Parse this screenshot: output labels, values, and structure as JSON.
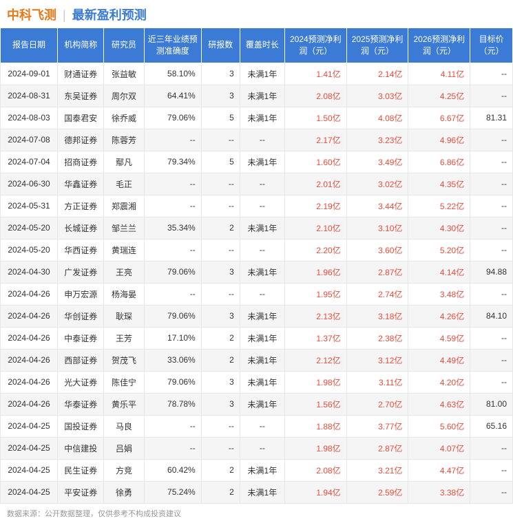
{
  "header": {
    "company": "中科飞测",
    "subtitle": "最新盈利预测"
  },
  "columns": [
    "报告日期",
    "机构简称",
    "研究员",
    "近三年业绩预测准确度",
    "研报数",
    "覆盖时长",
    "2024预测净利润（元）",
    "2025预测净利润（元）",
    "2026预测净利润（元）",
    "目标价（元）"
  ],
  "rows": [
    {
      "date": "2024-09-01",
      "org": "财通证券",
      "res": "张益敏",
      "acc": "58.10%",
      "cnt": "3",
      "cov": "未满1年",
      "p24": "1.41亿",
      "p25": "2.14亿",
      "p26": "4.11亿",
      "tgt": "--"
    },
    {
      "date": "2024-08-31",
      "org": "东吴证券",
      "res": "周尔双",
      "acc": "64.41%",
      "cnt": "3",
      "cov": "未满1年",
      "p24": "2.08亿",
      "p25": "3.03亿",
      "p26": "4.25亿",
      "tgt": "--"
    },
    {
      "date": "2024-08-03",
      "org": "国泰君安",
      "res": "徐乔威",
      "acc": "79.06%",
      "cnt": "5",
      "cov": "未满1年",
      "p24": "1.50亿",
      "p25": "4.08亿",
      "p26": "6.67亿",
      "tgt": "81.31"
    },
    {
      "date": "2024-07-08",
      "org": "德邦证券",
      "res": "陈蓉芳",
      "acc": "--",
      "cnt": "--",
      "cov": "--",
      "p24": "2.17亿",
      "p25": "3.23亿",
      "p26": "4.96亿",
      "tgt": "--"
    },
    {
      "date": "2024-07-04",
      "org": "招商证券",
      "res": "鄢凡",
      "acc": "79.34%",
      "cnt": "5",
      "cov": "未满1年",
      "p24": "1.60亿",
      "p25": "3.49亿",
      "p26": "6.86亿",
      "tgt": "--"
    },
    {
      "date": "2024-06-30",
      "org": "华鑫证券",
      "res": "毛正",
      "acc": "--",
      "cnt": "--",
      "cov": "--",
      "p24": "2.01亿",
      "p25": "3.02亿",
      "p26": "4.35亿",
      "tgt": "--"
    },
    {
      "date": "2024-05-31",
      "org": "方正证券",
      "res": "郑震湘",
      "acc": "--",
      "cnt": "--",
      "cov": "--",
      "p24": "2.19亿",
      "p25": "3.44亿",
      "p26": "5.22亿",
      "tgt": "--"
    },
    {
      "date": "2024-05-20",
      "org": "长城证券",
      "res": "邹兰兰",
      "acc": "35.34%",
      "cnt": "2",
      "cov": "未满1年",
      "p24": "2.10亿",
      "p25": "3.10亿",
      "p26": "4.30亿",
      "tgt": "--"
    },
    {
      "date": "2024-05-20",
      "org": "华西证券",
      "res": "黄瑞连",
      "acc": "--",
      "cnt": "--",
      "cov": "--",
      "p24": "2.20亿",
      "p25": "3.60亿",
      "p26": "5.20亿",
      "tgt": "--"
    },
    {
      "date": "2024-04-30",
      "org": "广发证券",
      "res": "王亮",
      "acc": "79.06%",
      "cnt": "3",
      "cov": "未满1年",
      "p24": "1.96亿",
      "p25": "2.87亿",
      "p26": "4.14亿",
      "tgt": "94.88"
    },
    {
      "date": "2024-04-26",
      "org": "申万宏源",
      "res": "杨海晏",
      "acc": "--",
      "cnt": "--",
      "cov": "--",
      "p24": "1.95亿",
      "p25": "2.74亿",
      "p26": "3.48亿",
      "tgt": "--"
    },
    {
      "date": "2024-04-26",
      "org": "华创证券",
      "res": "耿琛",
      "acc": "79.06%",
      "cnt": "3",
      "cov": "未满1年",
      "p24": "2.13亿",
      "p25": "3.18亿",
      "p26": "4.26亿",
      "tgt": "84.10"
    },
    {
      "date": "2024-04-26",
      "org": "中泰证券",
      "res": "王芳",
      "acc": "17.10%",
      "cnt": "2",
      "cov": "未满1年",
      "p24": "1.37亿",
      "p25": "2.38亿",
      "p26": "4.59亿",
      "tgt": "--"
    },
    {
      "date": "2024-04-26",
      "org": "西部证券",
      "res": "贺茂飞",
      "acc": "33.06%",
      "cnt": "2",
      "cov": "未满1年",
      "p24": "2.12亿",
      "p25": "3.12亿",
      "p26": "4.49亿",
      "tgt": "--"
    },
    {
      "date": "2024-04-26",
      "org": "光大证券",
      "res": "陈佳宁",
      "acc": "79.06%",
      "cnt": "3",
      "cov": "未满1年",
      "p24": "1.98亿",
      "p25": "3.11亿",
      "p26": "4.20亿",
      "tgt": "--"
    },
    {
      "date": "2024-04-26",
      "org": "华泰证券",
      "res": "黄乐平",
      "acc": "78.78%",
      "cnt": "3",
      "cov": "未满1年",
      "p24": "1.56亿",
      "p25": "2.70亿",
      "p26": "4.63亿",
      "tgt": "81.00"
    },
    {
      "date": "2024-04-25",
      "org": "国投证券",
      "res": "马良",
      "acc": "--",
      "cnt": "--",
      "cov": "--",
      "p24": "1.88亿",
      "p25": "3.77亿",
      "p26": "5.60亿",
      "tgt": "65.16"
    },
    {
      "date": "2024-04-25",
      "org": "中信建投",
      "res": "吕娟",
      "acc": "--",
      "cnt": "--",
      "cov": "--",
      "p24": "1.98亿",
      "p25": "2.87亿",
      "p26": "4.07亿",
      "tgt": "--"
    },
    {
      "date": "2024-04-25",
      "org": "民生证券",
      "res": "方竞",
      "acc": "60.42%",
      "cnt": "2",
      "cov": "未满1年",
      "p24": "2.08亿",
      "p25": "3.21亿",
      "p26": "4.47亿",
      "tgt": "--"
    },
    {
      "date": "2024-04-25",
      "org": "平安证券",
      "res": "徐勇",
      "acc": "75.24%",
      "cnt": "2",
      "cov": "未满1年",
      "p24": "1.94亿",
      "p25": "2.59亿",
      "p26": "3.38亿",
      "tgt": "--"
    }
  ],
  "footer": "数据来源：公开数据整理，仅供参考不构成投资建议",
  "colors": {
    "header_bg": "#3b7bd6",
    "company_color": "#e67817",
    "subtitle_color": "#3b7bd6",
    "profit_color": "#e84c3d",
    "alt_row_bg": "#f5f5f5",
    "border_color": "#e6e6e6"
  }
}
